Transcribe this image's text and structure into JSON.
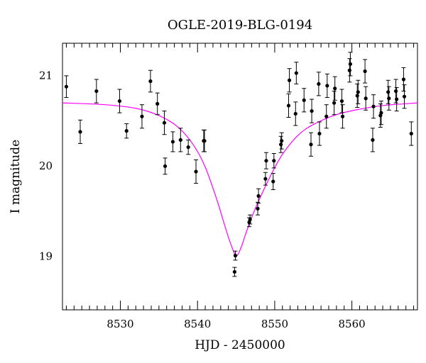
{
  "chart_data": {
    "type": "scatter",
    "title": "OGLE-2019-BLG-0194",
    "xlabel": "HJD - 2450000",
    "ylabel": "I magnitude",
    "xlim": [
      8522.5,
      8568.5
    ],
    "ylim": [
      21.35,
      18.4
    ],
    "y_inverted": true,
    "x_ticks": [
      8530,
      8540,
      8550,
      8560
    ],
    "y_ticks": [
      19,
      20,
      21
    ],
    "grid": false,
    "legend": "none",
    "colors": {
      "data": "#000000",
      "model": "#ff00ff"
    },
    "series": [
      {
        "kind": "points-with-errorbars",
        "x": [
          8523.0,
          8524.8,
          8526.9,
          8529.9,
          8530.8,
          8532.8,
          8533.9,
          8534.8,
          8535.7,
          8535.8,
          8536.8,
          8537.8,
          8538.8,
          8539.8,
          8540.8,
          8540.9,
          8544.8,
          8544.9,
          8546.7,
          8546.8,
          8547.8,
          8547.9,
          8548.8,
          8548.9,
          8549.8,
          8549.9,
          8550.8,
          8550.9,
          8551.8,
          8551.9,
          8552.7,
          8552.8,
          8553.8,
          8554.7,
          8554.8,
          8555.7,
          8555.8,
          8556.7,
          8556.8,
          8557.7,
          8557.8,
          8558.7,
          8558.8,
          8559.7,
          8559.8,
          8560.7,
          8560.8,
          8561.7,
          8561.8,
          8562.7,
          8562.8,
          8563.7,
          8563.8,
          8564.7,
          8564.8,
          8565.7,
          8565.8,
          8566.7,
          8566.8,
          8567.7
        ],
        "y": [
          20.87,
          20.37,
          20.82,
          20.71,
          20.38,
          20.54,
          20.93,
          20.68,
          20.47,
          19.99,
          20.26,
          20.28,
          20.2,
          19.93,
          20.27,
          20.27,
          18.82,
          19.0,
          19.37,
          19.4,
          19.52,
          19.66,
          19.85,
          20.05,
          19.82,
          20.05,
          20.23,
          20.27,
          20.66,
          20.94,
          20.57,
          21.02,
          20.72,
          20.23,
          20.6,
          20.9,
          20.35,
          20.54,
          20.88,
          20.69,
          20.85,
          20.71,
          20.54,
          21.05,
          21.12,
          20.77,
          20.81,
          21.04,
          20.74,
          20.28,
          20.65,
          20.55,
          20.58,
          20.81,
          20.74,
          20.82,
          20.73,
          20.95,
          20.76,
          20.35
        ],
        "err": [
          0.12,
          0.13,
          0.13,
          0.13,
          0.08,
          0.13,
          0.12,
          0.12,
          0.13,
          0.09,
          0.11,
          0.13,
          0.08,
          0.13,
          0.12,
          0.12,
          0.05,
          0.05,
          0.05,
          0.05,
          0.07,
          0.08,
          0.07,
          0.09,
          0.09,
          0.08,
          0.09,
          0.09,
          0.13,
          0.13,
          0.13,
          0.12,
          0.13,
          0.13,
          0.13,
          0.13,
          0.13,
          0.13,
          0.13,
          0.13,
          0.13,
          0.13,
          0.13,
          0.13,
          0.13,
          0.13,
          0.13,
          0.13,
          0.13,
          0.13,
          0.13,
          0.13,
          0.13,
          0.13,
          0.13,
          0.13,
          0.13,
          0.13,
          0.13,
          0.13
        ]
      },
      {
        "kind": "model-line",
        "x": [
          8522.5,
          8528.0,
          8532.0,
          8535.0,
          8537.5,
          8539.5,
          8541.0,
          8542.5,
          8543.5,
          8544.3,
          8545.0,
          8545.6,
          8546.2,
          8547.0,
          8548.0,
          8549.5,
          8551.0,
          8553.0,
          8555.0,
          8558.0,
          8561.0,
          8564.0,
          8568.5
        ],
        "y": [
          20.69,
          20.67,
          20.63,
          20.55,
          20.42,
          20.22,
          19.98,
          19.62,
          19.34,
          19.13,
          19.0,
          19.08,
          19.23,
          19.42,
          19.62,
          19.89,
          20.12,
          20.33,
          20.45,
          20.56,
          20.62,
          20.66,
          20.69
        ]
      }
    ]
  }
}
